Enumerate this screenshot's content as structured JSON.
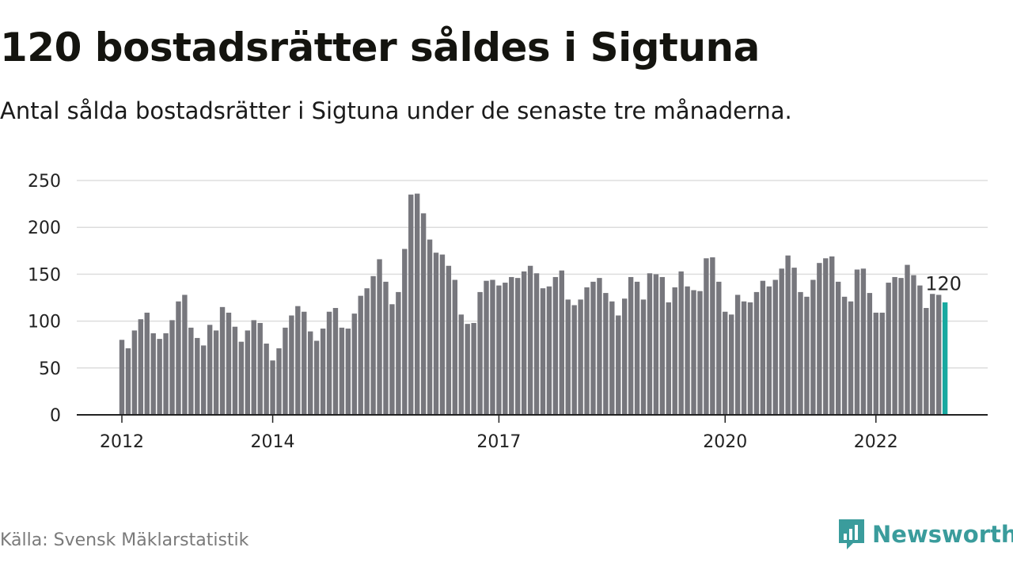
{
  "title": "120 bostadsrätter såldes i Sigtuna",
  "subtitle": "Antal sålda bostadsrätter i Sigtuna under de senaste tre månaderna.",
  "source": "Källa: Svensk Mäklarstatistik",
  "brand": "Newsworthy",
  "colors": {
    "bar": "#77777d",
    "highlight": "#18a9a0",
    "grid": "#dddddd",
    "axis": "#222222",
    "brand": "#3a9c9c"
  },
  "chart_data": {
    "type": "bar",
    "title": "120 bostadsrätter såldes i Sigtuna",
    "subtitle": "Antal sålda bostadsrätter i Sigtuna under de senaste tre månaderna.",
    "xlabel": "",
    "ylabel": "",
    "ylim": [
      0,
      250
    ],
    "yticks": [
      0,
      50,
      100,
      150,
      200,
      250
    ],
    "grid": true,
    "x_start": "2012-01",
    "x_ticks": [
      {
        "label": "2012",
        "index": 0
      },
      {
        "label": "2014",
        "index": 24
      },
      {
        "label": "2017",
        "index": 60
      },
      {
        "label": "2020",
        "index": 96
      },
      {
        "label": "2022",
        "index": 120
      }
    ],
    "values": [
      80,
      71,
      90,
      102,
      109,
      87,
      81,
      87,
      101,
      121,
      128,
      93,
      82,
      74,
      96,
      90,
      115,
      109,
      94,
      78,
      90,
      101,
      98,
      76,
      58,
      71,
      93,
      106,
      116,
      110,
      89,
      79,
      92,
      110,
      114,
      93,
      92,
      108,
      127,
      135,
      148,
      166,
      142,
      118,
      131,
      177,
      235,
      236,
      215,
      187,
      173,
      171,
      159,
      144,
      107,
      97,
      98,
      131,
      143,
      144,
      138,
      141,
      147,
      146,
      153,
      159,
      151,
      135,
      137,
      147,
      154,
      123,
      117,
      123,
      136,
      142,
      146,
      130,
      121,
      106,
      124,
      147,
      142,
      123,
      151,
      150,
      147,
      120,
      136,
      153,
      137,
      133,
      132,
      167,
      168,
      142,
      110,
      107,
      128,
      121,
      120,
      131,
      143,
      137,
      144,
      156,
      170,
      157,
      131,
      126,
      144,
      162,
      167,
      169,
      142,
      126,
      121,
      155,
      156,
      130,
      109,
      109,
      141,
      147,
      146,
      160,
      149,
      138,
      114,
      129,
      128,
      120
    ],
    "highlight_index": 131,
    "annotation": "120"
  }
}
